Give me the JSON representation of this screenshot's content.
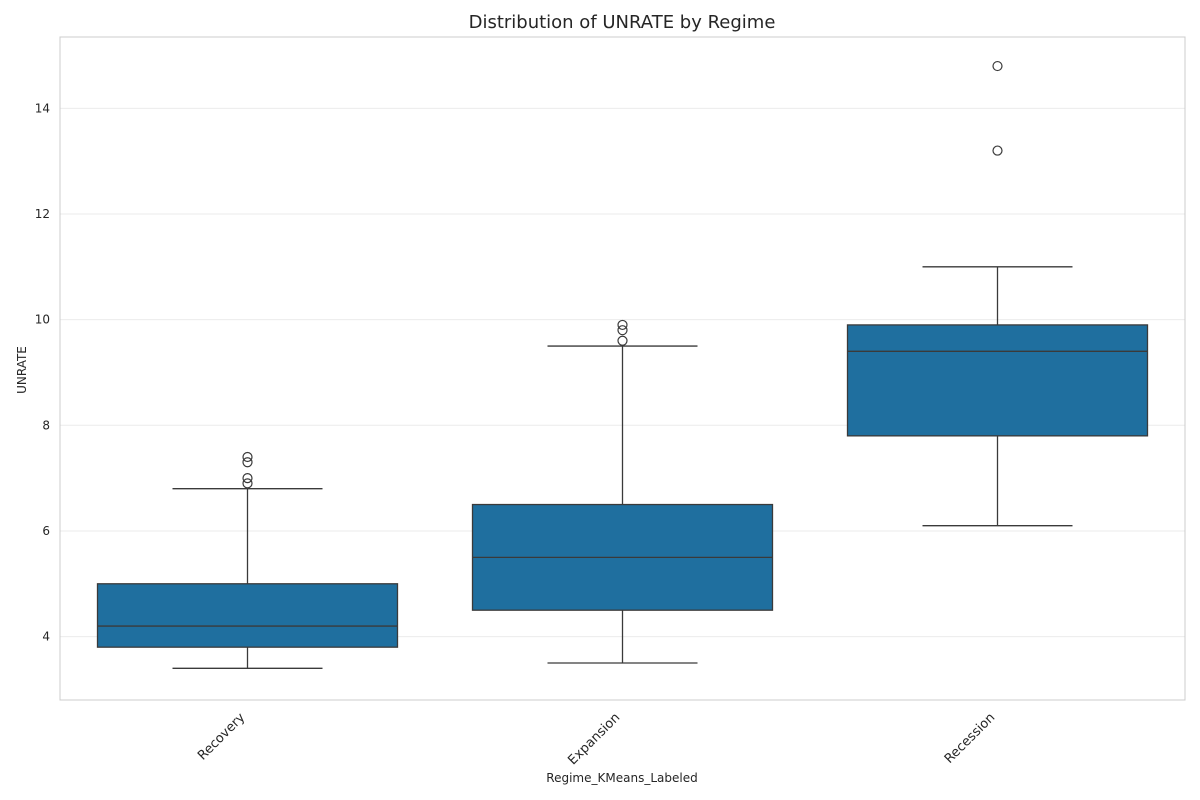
{
  "chart_data": {
    "type": "box",
    "title": "Distribution of UNRATE by Regime",
    "xlabel": "Regime_KMeans_Labeled",
    "ylabel": "UNRATE",
    "ylim": [
      2.8,
      15.35
    ],
    "yticks": [
      4,
      6,
      8,
      10,
      12,
      14
    ],
    "grid": "horizontal",
    "colors": {
      "box_fill": "#1f6f9f",
      "box_line": "#3a3a3a",
      "grid": "#ebebeb",
      "spine": "#cccccc"
    },
    "categories": [
      "Recovery",
      "Expansion",
      "Recession"
    ],
    "boxes": [
      {
        "category": "Recovery",
        "whisker_low": 3.4,
        "q1": 3.8,
        "median": 4.2,
        "q3": 5.0,
        "whisker_high": 6.8,
        "outliers": [
          6.9,
          7.0,
          7.3,
          7.4
        ]
      },
      {
        "category": "Expansion",
        "whisker_low": 3.5,
        "q1": 4.5,
        "median": 5.5,
        "q3": 6.5,
        "whisker_high": 9.5,
        "outliers": [
          9.6,
          9.8,
          9.9
        ]
      },
      {
        "category": "Recession",
        "whisker_low": 6.1,
        "q1": 7.8,
        "median": 9.4,
        "q3": 9.9,
        "whisker_high": 11.0,
        "outliers": [
          13.2,
          14.8
        ]
      }
    ]
  }
}
